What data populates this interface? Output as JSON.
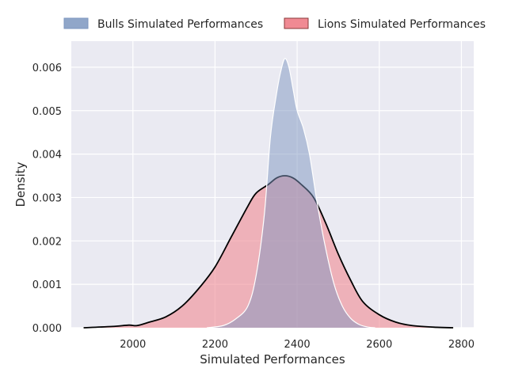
{
  "chart_data": {
    "type": "area",
    "title": "",
    "xlabel": "Simulated Performances",
    "ylabel": "Density",
    "xlim": [
      1850,
      2830
    ],
    "ylim": [
      0,
      0.0066
    ],
    "x_ticks": [
      2000,
      2200,
      2400,
      2600,
      2800
    ],
    "y_ticks": [
      0.0,
      0.001,
      0.002,
      0.003,
      0.004,
      0.005,
      0.006
    ],
    "x_tick_labels": [
      "2000",
      "2200",
      "2400",
      "2600",
      "2800"
    ],
    "y_tick_labels": [
      "0.000",
      "0.001",
      "0.002",
      "0.003",
      "0.004",
      "0.005",
      "0.006"
    ],
    "grid": true,
    "legend_position": "top",
    "series": [
      {
        "name": "Lions Simulated Performances",
        "fill_color": "#f08a93",
        "fill_opacity": 0.6,
        "line_color": "#000000",
        "x": [
          1880,
          1950,
          1990,
          2010,
          2040,
          2080,
          2120,
          2160,
          2200,
          2240,
          2280,
          2300,
          2330,
          2350,
          2370,
          2390,
          2410,
          2440,
          2470,
          2500,
          2530,
          2560,
          2600,
          2640,
          2680,
          2740,
          2780
        ],
        "values": [
          0.0,
          3e-05,
          6e-05,
          5e-05,
          0.00013,
          0.00025,
          0.0005,
          0.0009,
          0.0014,
          0.0021,
          0.0028,
          0.0031,
          0.0033,
          0.00345,
          0.0035,
          0.00345,
          0.0033,
          0.003,
          0.0024,
          0.0017,
          0.0011,
          0.0006,
          0.0003,
          0.00013,
          5e-05,
          1e-05,
          0.0
        ]
      },
      {
        "name": "Bulls Simulated Performances",
        "fill_color": "#7d96bf",
        "fill_opacity": 0.5,
        "line_color": "#ffffff",
        "x": [
          2180,
          2220,
          2250,
          2280,
          2300,
          2320,
          2335,
          2350,
          2360,
          2370,
          2380,
          2390,
          2400,
          2415,
          2430,
          2450,
          2470,
          2490,
          2510,
          2530,
          2550,
          2570,
          2590
        ],
        "values": [
          0.0,
          5e-05,
          0.0002,
          0.0005,
          0.0012,
          0.0026,
          0.0044,
          0.0054,
          0.0059,
          0.0062,
          0.006,
          0.0055,
          0.005,
          0.0046,
          0.004,
          0.0028,
          0.0018,
          0.001,
          0.0005,
          0.00022,
          8e-05,
          2e-05,
          0.0
        ]
      }
    ]
  }
}
